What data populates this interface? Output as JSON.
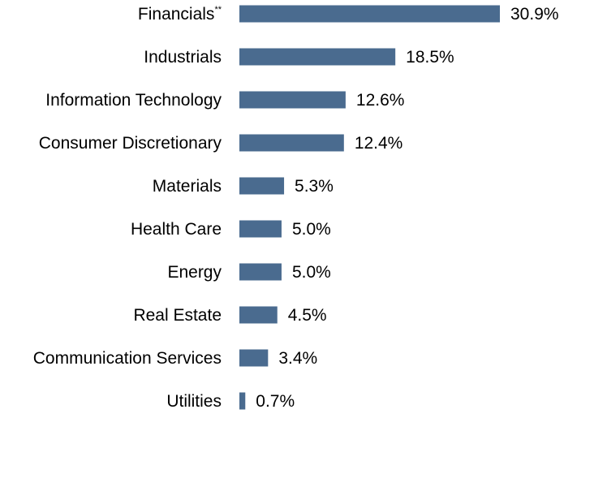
{
  "chart_data": {
    "type": "bar",
    "orientation": "horizontal",
    "title": "",
    "xlabel": "",
    "ylabel": "",
    "grid": false,
    "legend": "none",
    "xlim": [
      0,
      30.9
    ],
    "bar_color": "#4a6b8f",
    "categories": [
      "Financials",
      "Industrials",
      "Information Technology",
      "Consumer Discretionary",
      "Materials",
      "Health Care",
      "Energy",
      "Real Estate",
      "Communication Services",
      "Utilities"
    ],
    "category_footnotes": [
      "**",
      "",
      "",
      "",
      "",
      "",
      "",
      "",
      "",
      ""
    ],
    "values": [
      30.9,
      18.5,
      12.6,
      12.4,
      5.3,
      5.0,
      5.0,
      4.5,
      3.4,
      0.7
    ],
    "value_labels": [
      "30.9%",
      "18.5%",
      "12.6%",
      "12.4%",
      "5.3%",
      "5.0%",
      "5.0%",
      "4.5%",
      "3.4%",
      "0.7%"
    ]
  }
}
